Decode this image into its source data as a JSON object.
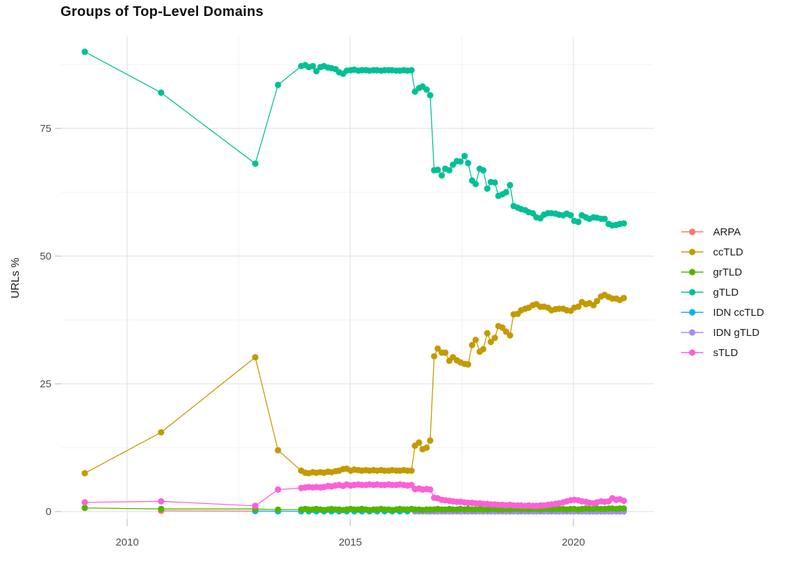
{
  "page": {
    "title": "Groups of Top-Level Domains"
  },
  "axes": {
    "y_label": "URLs %"
  },
  "legend": {
    "items": [
      {
        "label": "ARPA",
        "color": "#F8766D"
      },
      {
        "label": "ccTLD",
        "color": "#C49A00"
      },
      {
        "label": "grTLD",
        "color": "#53B400"
      },
      {
        "label": "gTLD",
        "color": "#00C094"
      },
      {
        "label": "IDN ccTLD",
        "color": "#00B6EB"
      },
      {
        "label": "IDN gTLD",
        "color": "#A58AFF"
      },
      {
        "label": "sTLD",
        "color": "#FB61D7"
      }
    ]
  },
  "chart_data": {
    "type": "line",
    "title": "Groups of Top-Level Domains",
    "xlabel": "",
    "ylabel": "URLs %",
    "xlim": [
      2008.52,
      2021.81
    ],
    "ylim": [
      -1.5,
      93
    ],
    "x_ticks": [
      2010,
      2015,
      2020
    ],
    "x_minor_ticks": [
      2012.5,
      2017.5
    ],
    "y_ticks": [
      0,
      25,
      50,
      75
    ],
    "y_minor_ticks": [
      12.5,
      37.5,
      62.5,
      87.5
    ],
    "grid": true,
    "legend_position": "right",
    "series": [
      {
        "name": "ARPA",
        "color": "#F8766D",
        "x": [
          2010.76,
          2012.87,
          2013.38
        ],
        "y": [
          0.15,
          0.08,
          0.05
        ]
      },
      {
        "name": "ccTLD",
        "color": "#C49A00",
        "x": [
          2009.05,
          2010.76,
          2012.87,
          2013.38,
          2013.9,
          2013.99,
          2014.07,
          2014.16,
          2014.24,
          2014.33,
          2014.41,
          2014.5,
          2014.58,
          2014.67,
          2014.75,
          2014.84,
          2014.92,
          2015.01,
          2015.09,
          2015.18,
          2015.26,
          2015.35,
          2015.43,
          2015.52,
          2015.6,
          2015.69,
          2015.77,
          2015.86,
          2015.94,
          2016.03,
          2016.11,
          2016.2,
          2016.28,
          2016.37,
          2016.45,
          2016.54,
          2016.62,
          2016.71,
          2016.79,
          2016.88,
          2016.96,
          2017.05,
          2017.13,
          2017.22,
          2017.3,
          2017.39,
          2017.47,
          2017.56,
          2017.64,
          2017.73,
          2017.81,
          2017.9,
          2017.98,
          2018.07,
          2018.15,
          2018.24,
          2018.32,
          2018.41,
          2018.49,
          2018.58,
          2018.66,
          2018.75,
          2018.83,
          2018.92,
          2019.0,
          2019.09,
          2019.17,
          2019.26,
          2019.34,
          2019.43,
          2019.51,
          2019.6,
          2019.68,
          2019.77,
          2019.85,
          2019.94,
          2020.02,
          2020.11,
          2020.19,
          2020.28,
          2020.36,
          2020.45,
          2020.53,
          2020.62,
          2020.7,
          2020.79,
          2020.87,
          2020.96,
          2021.04,
          2021.13
        ],
        "y": [
          7.5,
          15.5,
          30.2,
          12.0,
          8.0,
          7.6,
          7.5,
          7.7,
          7.6,
          7.7,
          7.6,
          7.8,
          7.7,
          7.9,
          8.0,
          8.3,
          8.4,
          8.0,
          8.2,
          8.1,
          8.0,
          8.1,
          8.0,
          8.1,
          8.0,
          8.1,
          8.0,
          8.0,
          8.1,
          8.0,
          8.0,
          8.1,
          8.0,
          8.0,
          12.9,
          13.5,
          12.2,
          12.5,
          13.9,
          30.4,
          31.9,
          31.1,
          31.1,
          29.5,
          30.2,
          29.6,
          29.2,
          28.9,
          28.8,
          32.6,
          33.6,
          31.3,
          31.8,
          34.9,
          33.2,
          34.0,
          36.3,
          36.0,
          35.2,
          34.5,
          38.6,
          38.7,
          39.4,
          39.7,
          39.9,
          40.4,
          40.6,
          40.1,
          40.1,
          39.9,
          39.4,
          39.6,
          39.7,
          39.7,
          39.4,
          39.3,
          39.9,
          40.1,
          41.0,
          40.6,
          40.8,
          40.4,
          41.2,
          42.1,
          42.4,
          42.0,
          41.7,
          41.7,
          41.4,
          41.8
        ]
      },
      {
        "name": "grTLD",
        "color": "#53B400",
        "x": [
          2009.05,
          2010.76,
          2012.87,
          2013.38,
          2013.9,
          2013.99,
          2014.07,
          2014.16,
          2014.24,
          2014.33,
          2014.41,
          2014.5,
          2014.58,
          2014.67,
          2014.75,
          2014.84,
          2014.92,
          2015.01,
          2015.09,
          2015.18,
          2015.26,
          2015.35,
          2015.43,
          2015.52,
          2015.6,
          2015.69,
          2015.77,
          2015.86,
          2015.94,
          2016.03,
          2016.11,
          2016.2,
          2016.28,
          2016.37,
          2016.45,
          2016.54,
          2016.62,
          2016.71,
          2016.79,
          2016.88,
          2016.96,
          2017.05,
          2017.13,
          2017.22,
          2017.3,
          2017.39,
          2017.47,
          2017.56,
          2017.64,
          2017.73,
          2017.81,
          2017.9,
          2017.98,
          2018.07,
          2018.15,
          2018.24,
          2018.32,
          2018.41,
          2018.49,
          2018.58,
          2018.66,
          2018.75,
          2018.83,
          2018.92,
          2019.0,
          2019.09,
          2019.17,
          2019.26,
          2019.34,
          2019.43,
          2019.51,
          2019.6,
          2019.68,
          2019.77,
          2019.85,
          2019.94,
          2020.02,
          2020.11,
          2020.19,
          2020.28,
          2020.36,
          2020.45,
          2020.53,
          2020.62,
          2020.7,
          2020.79,
          2020.87,
          2020.96,
          2021.04,
          2021.13
        ],
        "y": [
          0.7,
          0.5,
          0.5,
          0.35,
          0.4,
          0.5,
          0.4,
          0.4,
          0.5,
          0.4,
          0.3,
          0.4,
          0.5,
          0.4,
          0.4,
          0.3,
          0.4,
          0.5,
          0.4,
          0.4,
          0.5,
          0.4,
          0.3,
          0.4,
          0.4,
          0.5,
          0.4,
          0.4,
          0.3,
          0.4,
          0.5,
          0.4,
          0.4,
          0.5,
          0.4,
          0.4,
          0.3,
          0.4,
          0.4,
          0.4,
          0.5,
          0.4,
          0.4,
          0.5,
          0.4,
          0.4,
          0.5,
          0.4,
          0.5,
          0.4,
          0.4,
          0.5,
          0.4,
          0.4,
          0.5,
          0.5,
          0.4,
          0.4,
          0.5,
          0.4,
          0.5,
          0.5,
          0.4,
          0.5,
          0.4,
          0.5,
          0.5,
          0.4,
          0.5,
          0.5,
          0.4,
          0.5,
          0.5,
          0.5,
          0.4,
          0.5,
          0.5,
          0.4,
          0.5,
          0.6,
          0.5,
          0.5,
          0.6,
          0.5,
          0.5,
          0.6,
          0.6,
          0.5,
          0.6,
          0.6
        ]
      },
      {
        "name": "gTLD",
        "color": "#00C094",
        "x": [
          2009.05,
          2010.76,
          2012.87,
          2013.38,
          2013.9,
          2013.99,
          2014.07,
          2014.16,
          2014.24,
          2014.33,
          2014.41,
          2014.5,
          2014.58,
          2014.67,
          2014.75,
          2014.84,
          2014.92,
          2015.01,
          2015.09,
          2015.18,
          2015.26,
          2015.35,
          2015.43,
          2015.52,
          2015.6,
          2015.69,
          2015.77,
          2015.86,
          2015.94,
          2016.03,
          2016.11,
          2016.2,
          2016.28,
          2016.37,
          2016.45,
          2016.54,
          2016.62,
          2016.71,
          2016.79,
          2016.88,
          2016.96,
          2017.05,
          2017.13,
          2017.22,
          2017.3,
          2017.39,
          2017.47,
          2017.56,
          2017.64,
          2017.73,
          2017.81,
          2017.9,
          2017.98,
          2018.07,
          2018.15,
          2018.24,
          2018.32,
          2018.41,
          2018.49,
          2018.58,
          2018.66,
          2018.75,
          2018.83,
          2018.92,
          2019.0,
          2019.09,
          2019.17,
          2019.26,
          2019.34,
          2019.43,
          2019.51,
          2019.6,
          2019.68,
          2019.77,
          2019.85,
          2019.94,
          2020.02,
          2020.11,
          2020.19,
          2020.28,
          2020.36,
          2020.45,
          2020.53,
          2020.62,
          2020.7,
          2020.79,
          2020.87,
          2020.96,
          2021.04,
          2021.13
        ],
        "y": [
          90.0,
          82.0,
          68.1,
          83.5,
          87.2,
          87.4,
          87.0,
          87.2,
          86.2,
          87.0,
          87.2,
          86.9,
          86.8,
          86.6,
          86.0,
          85.7,
          86.3,
          86.4,
          86.5,
          86.3,
          86.4,
          86.4,
          86.3,
          86.4,
          86.4,
          86.3,
          86.4,
          86.4,
          86.4,
          86.3,
          86.3,
          86.4,
          86.3,
          86.4,
          82.2,
          82.9,
          83.2,
          82.6,
          81.5,
          66.8,
          66.9,
          65.8,
          67.1,
          66.8,
          67.9,
          68.6,
          68.5,
          69.6,
          68.2,
          64.8,
          64.1,
          67.1,
          66.8,
          63.2,
          64.5,
          64.4,
          61.8,
          62.1,
          62.5,
          63.9,
          59.8,
          59.5,
          59.2,
          59.0,
          58.6,
          58.4,
          57.6,
          57.4,
          58.1,
          58.4,
          58.4,
          58.3,
          58.1,
          58.0,
          58.3,
          58.0,
          56.9,
          56.7,
          58.0,
          57.6,
          57.3,
          57.6,
          57.5,
          57.3,
          57.3,
          56.3,
          56.0,
          56.1,
          56.3,
          56.4
        ]
      },
      {
        "name": "IDN ccTLD",
        "color": "#00B6EB",
        "x": [
          2012.87,
          2013.38,
          2013.9,
          2014.07,
          2014.24,
          2014.41,
          2014.58,
          2014.75,
          2014.92,
          2015.09,
          2015.26,
          2015.43,
          2015.6,
          2015.77,
          2015.94,
          2016.11,
          2016.28,
          2016.45,
          2016.62,
          2016.79,
          2016.96,
          2017.13,
          2017.3,
          2017.47,
          2017.64,
          2017.81,
          2017.98,
          2018.15,
          2018.32,
          2018.49,
          2018.66,
          2018.83,
          2019.0,
          2019.17,
          2019.34,
          2019.51,
          2019.68,
          2019.85,
          2020.02,
          2020.19,
          2020.36,
          2020.53,
          2020.7,
          2020.87,
          2021.04
        ],
        "y": [
          0.1,
          0.07,
          0.05,
          0.05,
          0.05,
          0.05,
          0.05,
          0.05,
          0.05,
          0.05,
          0.05,
          0.05,
          0.05,
          0.05,
          0.05,
          0.05,
          0.05,
          0.05,
          0.05,
          0.05,
          0.05,
          0.05,
          0.05,
          0.05,
          0.05,
          0.05,
          0.05,
          0.05,
          0.05,
          0.05,
          0.05,
          0.05,
          0.05,
          0.05,
          0.05,
          0.05,
          0.05,
          0.05,
          0.05,
          0.05,
          0.05,
          0.05,
          0.05,
          0.05,
          0.05
        ]
      },
      {
        "name": "IDN gTLD",
        "color": "#A58AFF",
        "x": [
          2016.45,
          2016.54,
          2016.62,
          2016.71,
          2016.79,
          2016.88,
          2016.96,
          2017.05,
          2017.13,
          2017.22,
          2017.3,
          2017.39,
          2017.47,
          2017.56,
          2017.64,
          2017.73,
          2017.81,
          2017.9,
          2017.98,
          2018.07,
          2018.15,
          2018.24,
          2018.32,
          2018.41,
          2018.49,
          2018.58,
          2018.66,
          2018.75,
          2018.83,
          2018.92,
          2019.0,
          2019.09,
          2019.17,
          2019.26,
          2019.34,
          2019.43,
          2019.51,
          2019.6,
          2019.68,
          2019.77,
          2019.85,
          2019.94,
          2020.02,
          2020.11,
          2020.19,
          2020.28,
          2020.36,
          2020.45,
          2020.53,
          2020.62,
          2020.7,
          2020.79,
          2020.87,
          2020.96,
          2021.04,
          2021.13
        ],
        "y": [
          0.02,
          0.02,
          0.02,
          0.02,
          0.02,
          0.02,
          0.02,
          0.02,
          0.02,
          0.02,
          0.02,
          0.02,
          0.02,
          0.02,
          0.02,
          0.02,
          0.02,
          0.02,
          0.02,
          0.02,
          0.02,
          0.02,
          0.02,
          0.02,
          0.02,
          0.02,
          0.02,
          0.02,
          0.02,
          0.02,
          0.02,
          0.02,
          0.02,
          0.02,
          0.02,
          0.02,
          0.02,
          0.02,
          0.02,
          0.02,
          0.02,
          0.02,
          0.02,
          0.02,
          0.02,
          0.02,
          0.02,
          0.02,
          0.02,
          0.02,
          0.02,
          0.02,
          0.02,
          0.02,
          0.02,
          0.02
        ]
      },
      {
        "name": "sTLD",
        "color": "#FB61D7",
        "x": [
          2009.05,
          2010.76,
          2012.87,
          2013.38,
          2013.9,
          2013.99,
          2014.07,
          2014.16,
          2014.24,
          2014.33,
          2014.41,
          2014.5,
          2014.58,
          2014.67,
          2014.75,
          2014.84,
          2014.92,
          2015.01,
          2015.09,
          2015.18,
          2015.26,
          2015.35,
          2015.43,
          2015.52,
          2015.6,
          2015.69,
          2015.77,
          2015.86,
          2015.94,
          2016.03,
          2016.11,
          2016.2,
          2016.28,
          2016.37,
          2016.45,
          2016.54,
          2016.62,
          2016.71,
          2016.79,
          2016.88,
          2016.96,
          2017.05,
          2017.13,
          2017.22,
          2017.3,
          2017.39,
          2017.47,
          2017.56,
          2017.64,
          2017.73,
          2017.81,
          2017.9,
          2017.98,
          2018.07,
          2018.15,
          2018.24,
          2018.32,
          2018.41,
          2018.49,
          2018.58,
          2018.66,
          2018.75,
          2018.83,
          2018.92,
          2019.0,
          2019.09,
          2019.17,
          2019.26,
          2019.34,
          2019.43,
          2019.51,
          2019.6,
          2019.68,
          2019.77,
          2019.85,
          2019.94,
          2020.02,
          2020.11,
          2020.19,
          2020.28,
          2020.36,
          2020.45,
          2020.53,
          2020.62,
          2020.7,
          2020.79,
          2020.87,
          2020.96,
          2021.04,
          2021.13
        ],
        "y": [
          1.8,
          2.0,
          1.1,
          4.3,
          4.6,
          4.7,
          4.8,
          4.7,
          4.8,
          4.7,
          4.8,
          5.0,
          4.9,
          5.1,
          5.2,
          5.0,
          5.3,
          5.1,
          5.2,
          5.3,
          5.2,
          5.2,
          5.3,
          5.2,
          5.3,
          5.2,
          5.2,
          5.3,
          5.2,
          5.2,
          5.3,
          5.2,
          5.1,
          5.2,
          4.4,
          4.5,
          4.3,
          4.4,
          4.3,
          2.7,
          2.6,
          2.3,
          2.2,
          2.1,
          2.0,
          1.9,
          1.9,
          1.8,
          1.7,
          1.7,
          1.6,
          1.6,
          1.5,
          1.5,
          1.4,
          1.4,
          1.3,
          1.3,
          1.2,
          1.3,
          1.2,
          1.2,
          1.2,
          1.1,
          1.2,
          1.1,
          1.1,
          1.2,
          1.2,
          1.3,
          1.4,
          1.5,
          1.6,
          1.8,
          2.0,
          2.2,
          2.3,
          2.2,
          2.0,
          1.9,
          1.7,
          1.6,
          1.8,
          2.0,
          1.9,
          2.0,
          2.6,
          2.3,
          2.4,
          2.1
        ]
      }
    ]
  }
}
